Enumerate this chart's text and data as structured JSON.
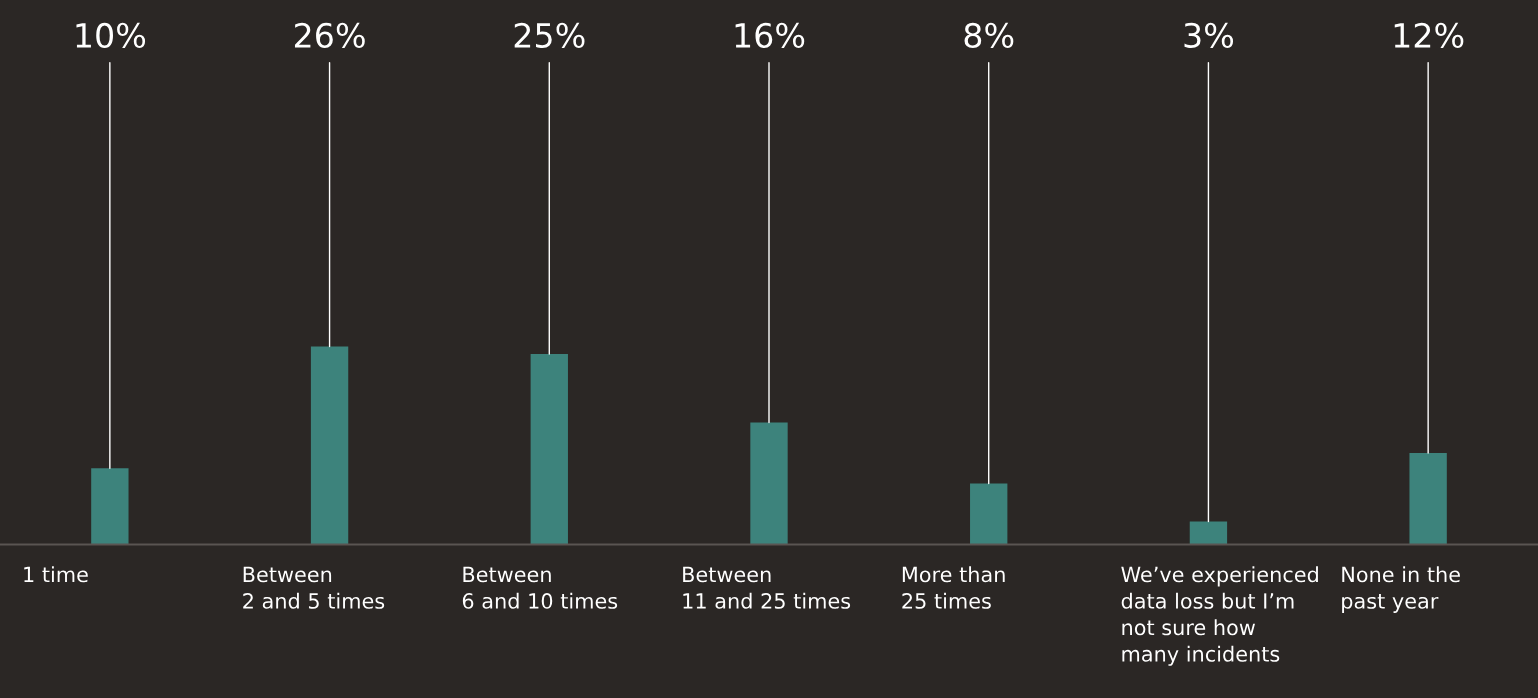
{
  "chart_data": {
    "type": "bar",
    "categories": [
      "1 time",
      "Between\n2 and 5 times",
      "Between\n6 and 10 times",
      "Between\n11 and 25 times",
      "More than\n25 times",
      "We’ve experienced\ndata loss but I’m\nnot sure how\nmany incidents",
      "None in the\npast year"
    ],
    "values": [
      10,
      26,
      25,
      16,
      8,
      3,
      12
    ],
    "value_labels": [
      "10%",
      "26%",
      "25%",
      "16%",
      "8%",
      "3%",
      "12%"
    ],
    "color": "#3d837c",
    "tick_labels": "x"
  }
}
